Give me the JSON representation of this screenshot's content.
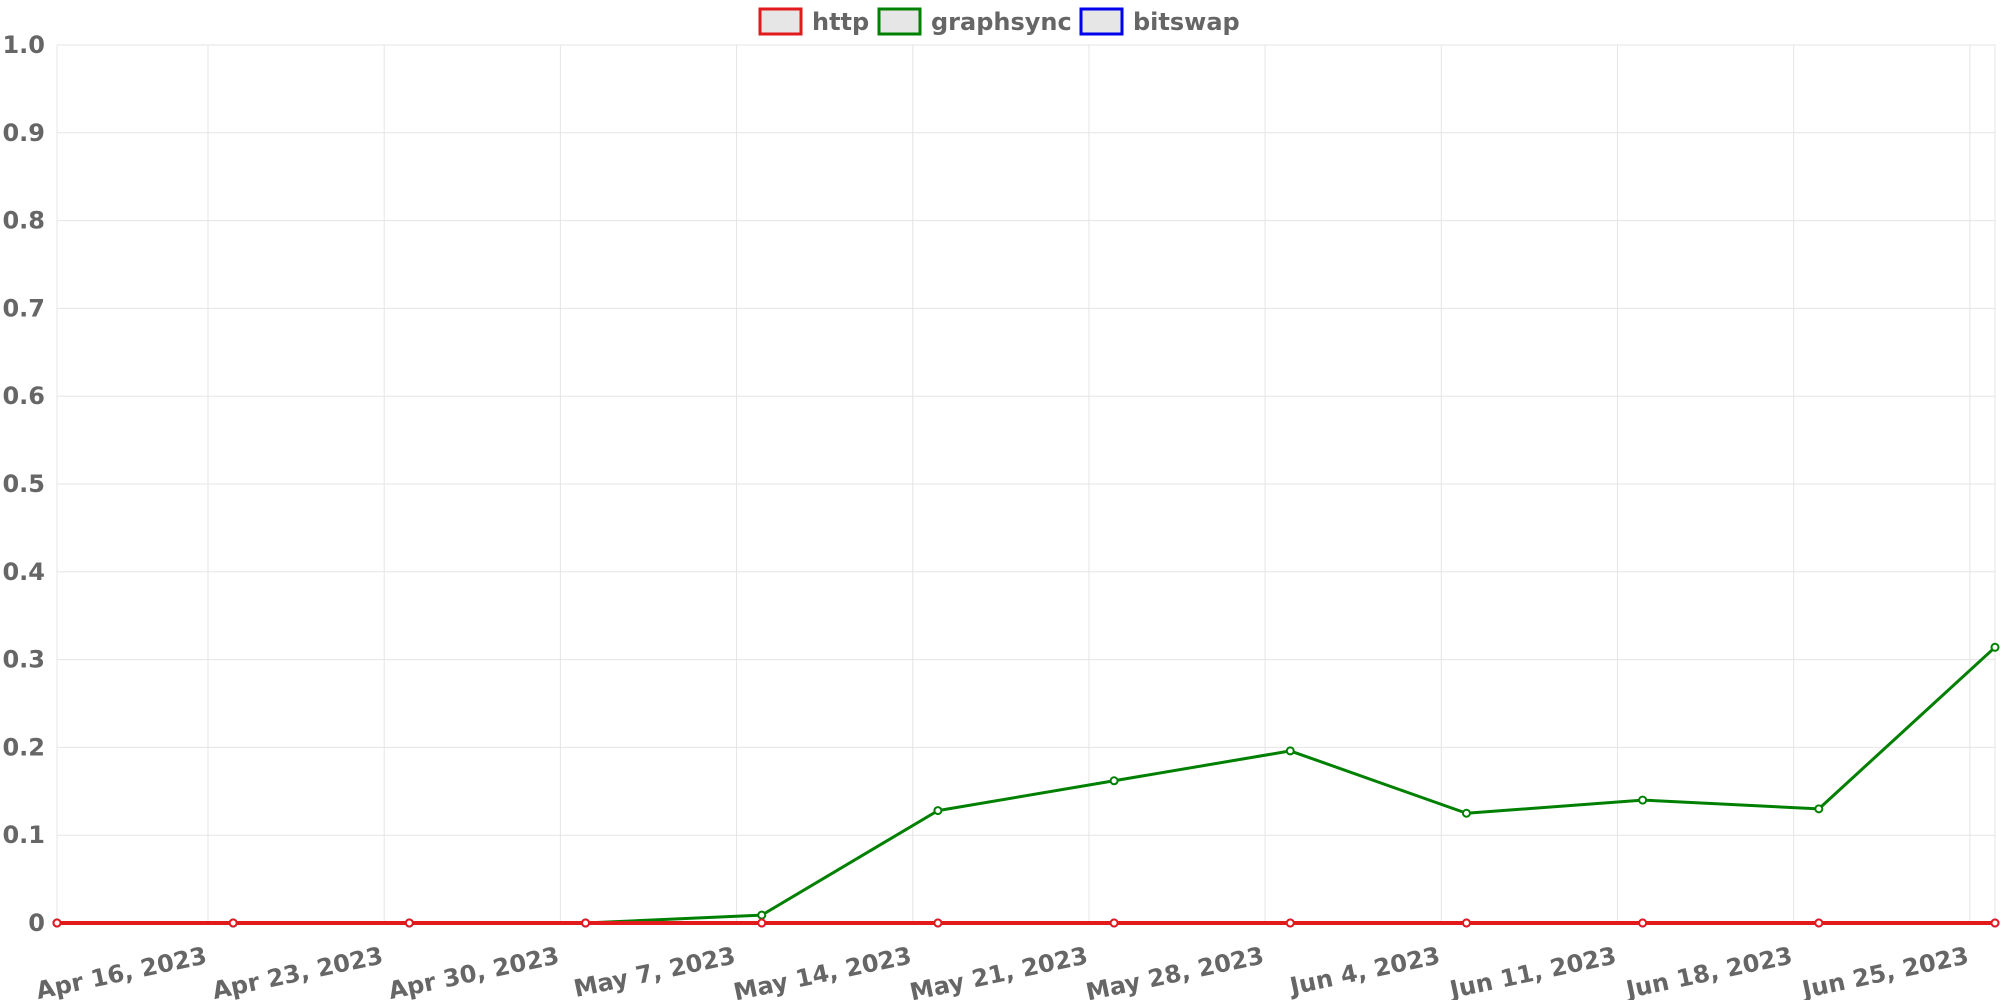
{
  "chart_data": {
    "type": "line",
    "title": "",
    "xlabel": "",
    "ylabel": "",
    "ylim": [
      0,
      1.0
    ],
    "y_ticks": [
      "0",
      "0.1",
      "0.2",
      "0.3",
      "0.4",
      "0.5",
      "0.6",
      "0.7",
      "0.8",
      "0.9",
      "1.0"
    ],
    "x_tick_labels": [
      "Apr 16, 2023",
      "Apr 23, 2023",
      "Apr 30, 2023",
      "May 7, 2023",
      "May 14, 2023",
      "May 21, 2023",
      "May 28, 2023",
      "Jun 4, 2023",
      "Jun 11, 2023",
      "Jun 18, 2023",
      "Jun 25, 2023"
    ],
    "x_range_days": [
      0,
      77
    ],
    "x_tick_days": [
      6,
      13,
      20,
      27,
      34,
      41,
      48,
      55,
      62,
      69,
      76
    ],
    "point_days": [
      0,
      7,
      14,
      21,
      28,
      35,
      42,
      49,
      56,
      63,
      70,
      77
    ],
    "grid": true,
    "legend_position": "top-center",
    "series": [
      {
        "name": "http",
        "color": "#e31a1c",
        "values": [
          0,
          0,
          0,
          0,
          0,
          0,
          0,
          0,
          0,
          0,
          0,
          0
        ]
      },
      {
        "name": "graphsync",
        "color": "#008000",
        "values": [
          0,
          0,
          0,
          0,
          0.009,
          0.128,
          0.162,
          0.196,
          0.125,
          0.14,
          0.13,
          0.314
        ]
      },
      {
        "name": "bitswap",
        "color": "#0000ee",
        "values": [
          0,
          0,
          0,
          0,
          0,
          0,
          0,
          0,
          0,
          0,
          0,
          0
        ]
      }
    ],
    "legend_fill_color": "#e6e6e6",
    "grid_color": "#e5e5e5",
    "text_color": "#666666"
  }
}
